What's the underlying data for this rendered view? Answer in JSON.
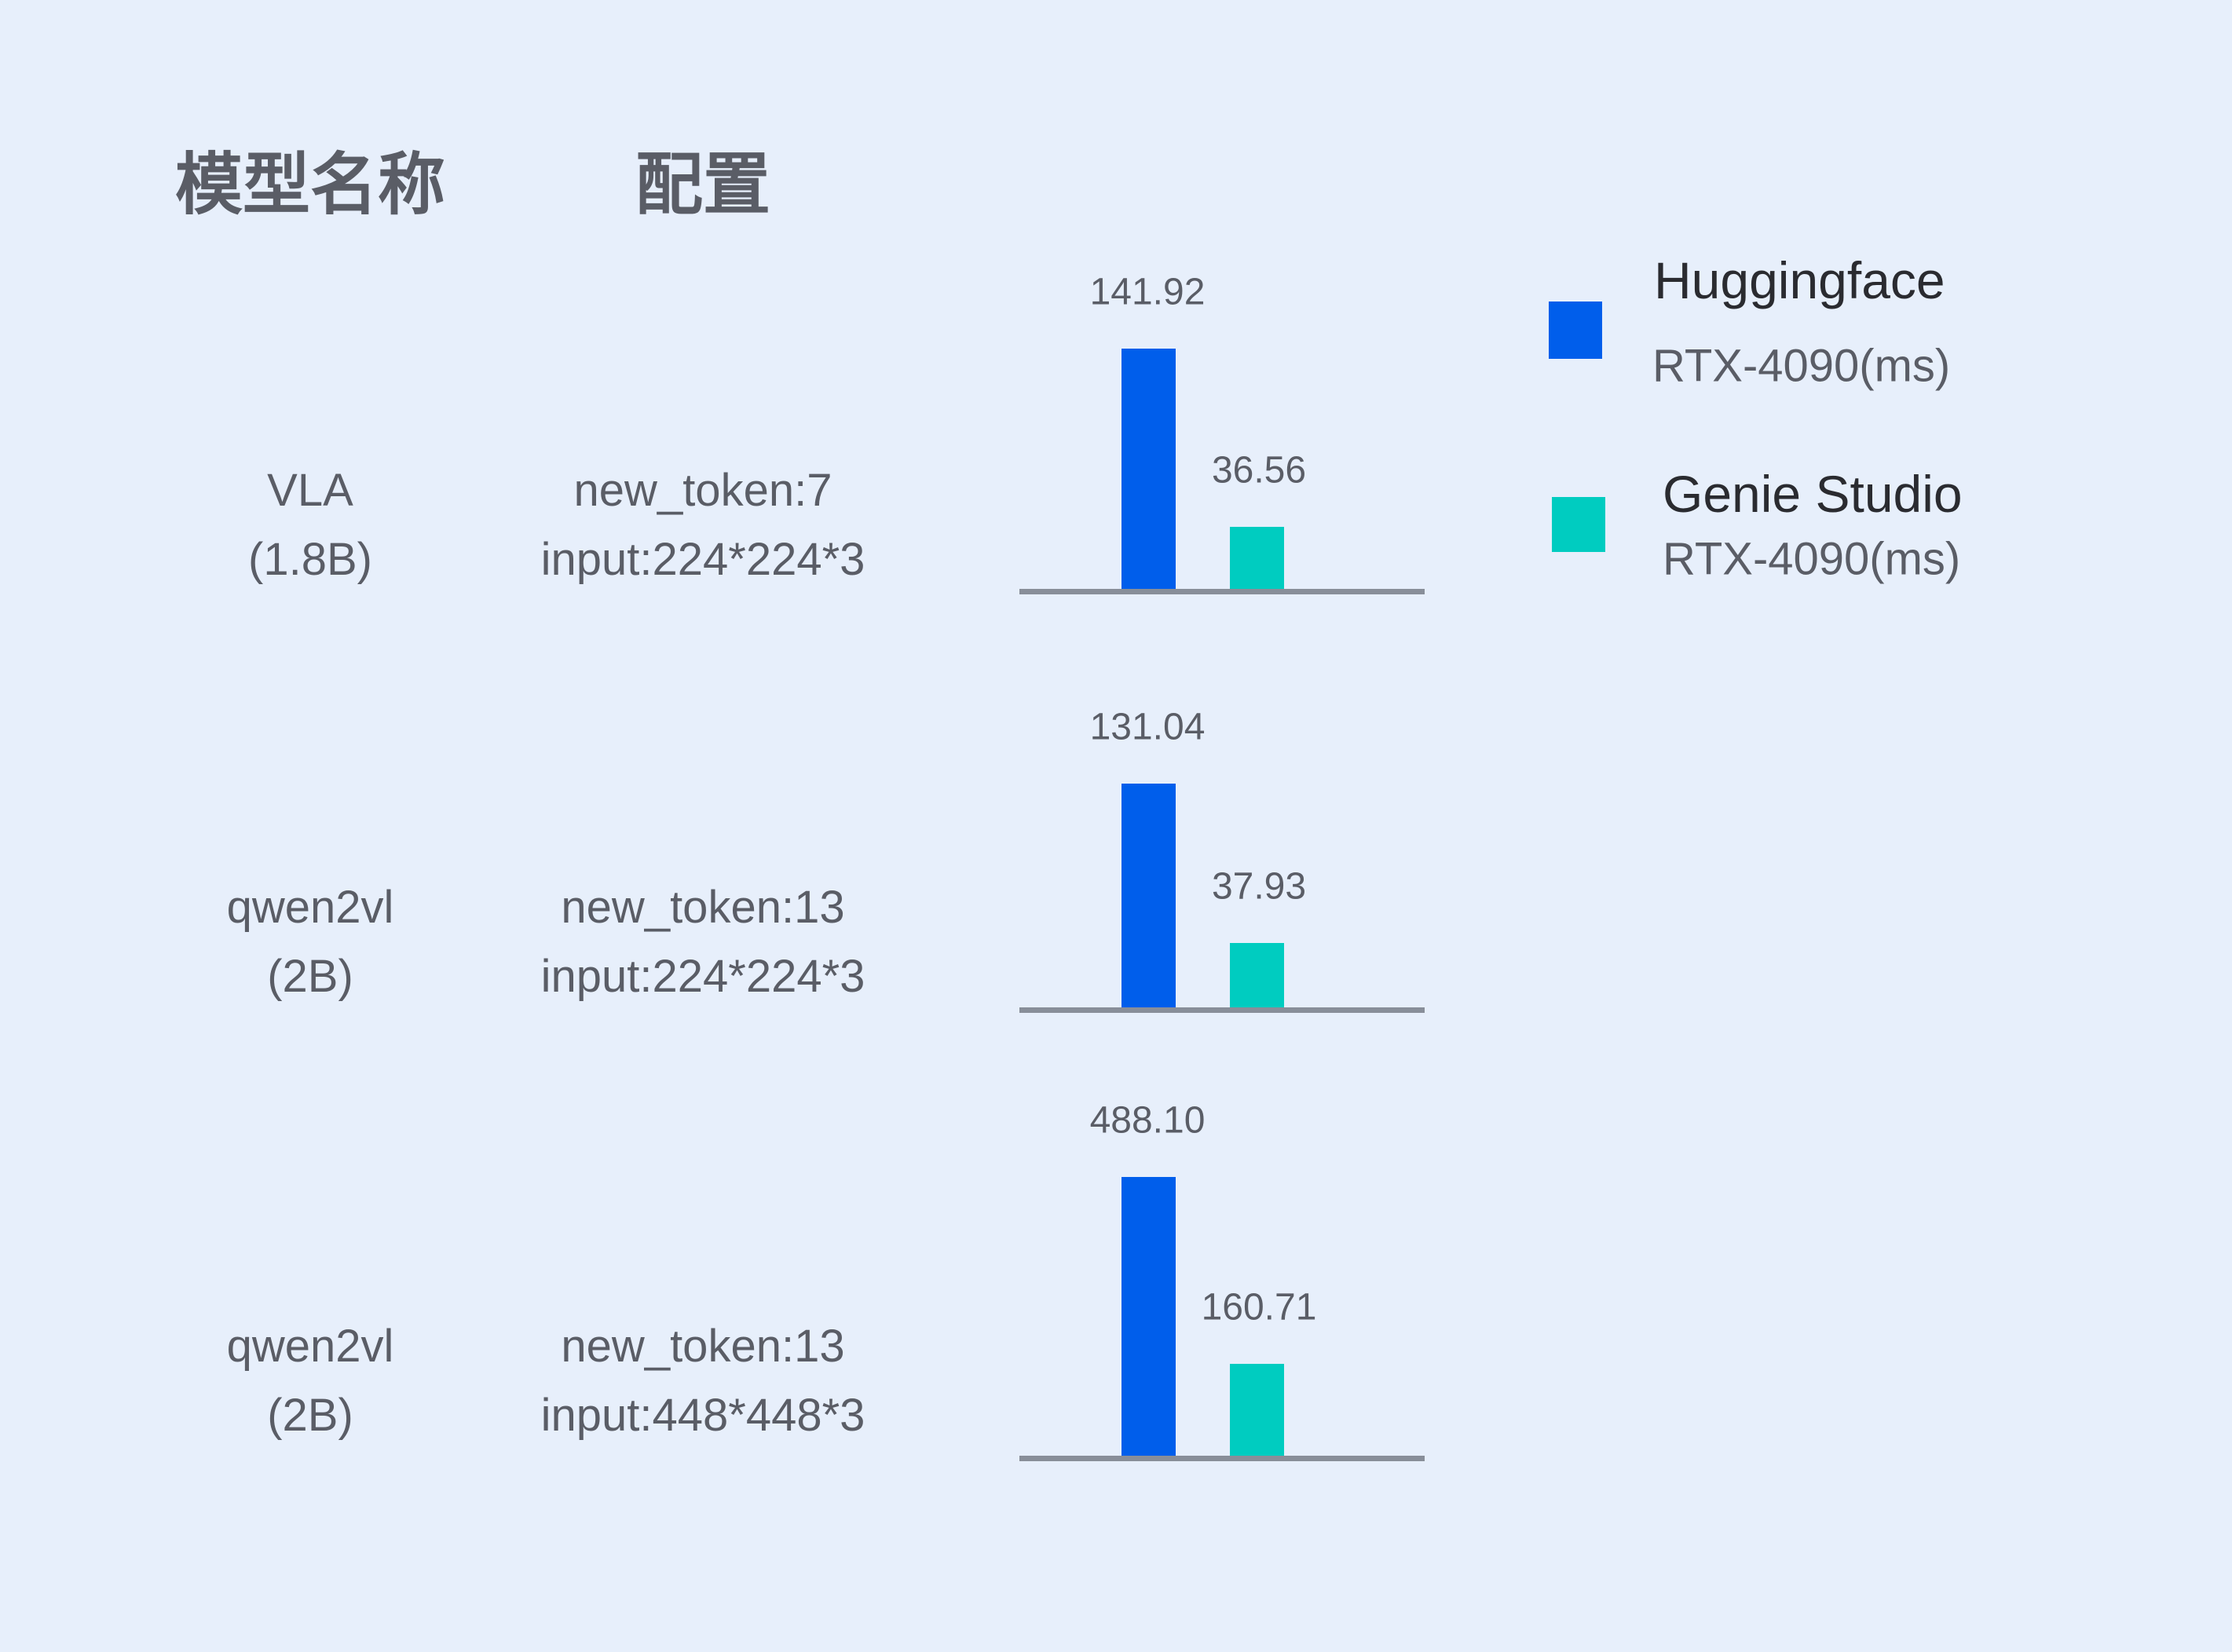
{
  "headers": {
    "model": "模型名称",
    "config": "配置"
  },
  "colors": {
    "background": "#E7EFFB",
    "huggingface": "#005EEB",
    "genie_studio": "#00CCC0",
    "axis": "#888E99"
  },
  "legend": [
    {
      "name": "Huggingface",
      "sub": "RTX-4090(ms)",
      "color": "#005EEB"
    },
    {
      "name": "Genie Studio",
      "sub": "RTX-4090(ms)",
      "color": "#00CCC0"
    }
  ],
  "chart_data": {
    "type": "bar",
    "categories": [
      "VLA (1.8B) new_token:7 input:224*224*3",
      "qwen2vl (2B) new_token:13 input:224*224*3",
      "qwen2vl (2B) new_token:13 input:448*448*3"
    ],
    "series": [
      {
        "name": "Huggingface RTX-4090(ms)",
        "values": [
          141.92,
          131.04,
          488.1
        ]
      },
      {
        "name": "Genie Studio RTX-4090(ms)",
        "values": [
          36.56,
          37.93,
          160.71
        ]
      }
    ],
    "labels": [
      [
        "141.92",
        "36.56"
      ],
      [
        "131.04",
        "37.93"
      ],
      [
        "488.10",
        "160.71"
      ]
    ],
    "grid": false,
    "legend_position": "top-right"
  },
  "rows": [
    {
      "model": "VLA",
      "size": "(1.8B)",
      "config_line1": "new_token:7",
      "config_line2": "input:224*224*3"
    },
    {
      "model": "qwen2vl",
      "size": "(2B)",
      "config_line1": "new_token:13",
      "config_line2": "input:224*224*3"
    },
    {
      "model": "qwen2vl",
      "size": "(2B)",
      "config_line1": "new_token:13",
      "config_line2": "input:448*448*3"
    }
  ]
}
